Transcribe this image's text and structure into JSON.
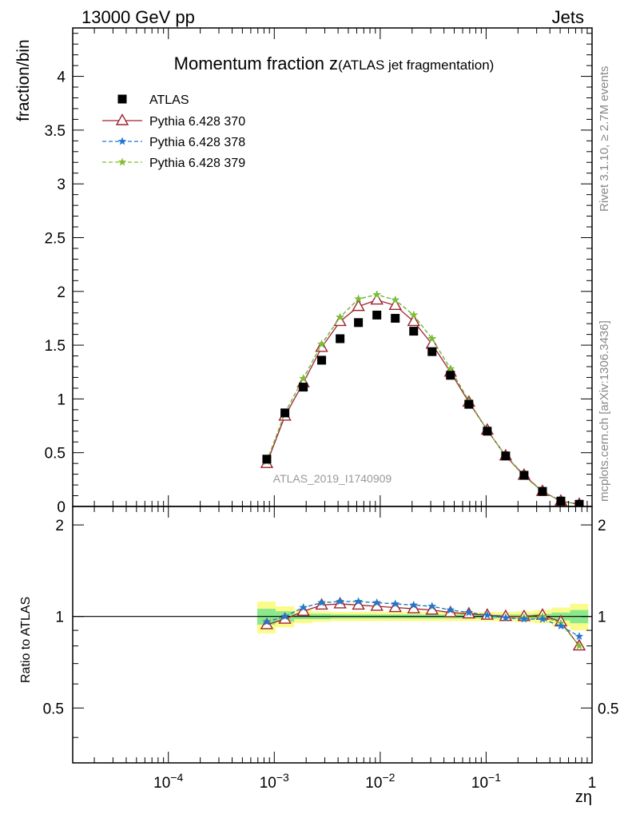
{
  "header": {
    "left_label": "13000 GeV pp",
    "right_label": "Jets"
  },
  "side_labels": {
    "rivet": "Rivet 3.1.10, ≥ 2.7M events",
    "mcplots": "mcplots.cern.ch [arXiv:1306.3436]"
  },
  "chart_data": [
    {
      "type": "scatter",
      "title": "Momentum fraction z",
      "subtitle": "(ATLAS jet fragmentation)",
      "ylabel": "fraction/bin",
      "xlabel": "",
      "watermark": "ATLAS_2019_I1740909",
      "x_scale": "log",
      "xlim": [
        1.25e-05,
        1.0
      ],
      "ylim": [
        0,
        4.45
      ],
      "x_ticks": [
        {
          "value": 0.0001,
          "base": "10",
          "exp": "−4"
        },
        {
          "value": 0.001,
          "base": "10",
          "exp": "−3"
        },
        {
          "value": 0.01,
          "base": "10",
          "exp": "−2"
        },
        {
          "value": 0.1,
          "base": "10",
          "exp": "−1"
        },
        {
          "value": 1,
          "base": "1",
          "exp": ""
        }
      ],
      "y_ticks": [
        {
          "value": 0,
          "label": "0"
        },
        {
          "value": 0.5,
          "label": "0.5"
        },
        {
          "value": 1,
          "label": "1"
        },
        {
          "value": 1.5,
          "label": "1.5"
        },
        {
          "value": 2,
          "label": "2"
        },
        {
          "value": 2.5,
          "label": "2.5"
        },
        {
          "value": 3,
          "label": "3"
        },
        {
          "value": 3.5,
          "label": "3.5"
        },
        {
          "value": 4,
          "label": "4"
        }
      ],
      "legend_position": "top-left",
      "x": [
        0.00085,
        0.00126,
        0.00188,
        0.0028,
        0.00418,
        0.00623,
        0.0093,
        0.01387,
        0.0207,
        0.03087,
        0.04606,
        0.06871,
        0.1025,
        0.1529,
        0.2281,
        0.3404,
        0.5077,
        0.757
      ],
      "series": [
        {
          "name": "ATLAS",
          "color": "#000000",
          "marker": "square",
          "line": "none",
          "values": [
            0.44,
            0.87,
            1.11,
            1.36,
            1.56,
            1.71,
            1.78,
            1.75,
            1.63,
            1.44,
            1.22,
            0.95,
            0.7,
            0.47,
            0.29,
            0.14,
            0.05,
            0.02
          ]
        },
        {
          "name": "Pythia 6.428 370",
          "color": "#a0222e",
          "marker": "open-triangle",
          "line": "solid",
          "values": [
            0.4,
            0.84,
            1.15,
            1.48,
            1.72,
            1.86,
            1.92,
            1.87,
            1.72,
            1.51,
            1.25,
            0.97,
            0.71,
            0.47,
            0.29,
            0.14,
            0.05,
            0.02
          ]
        },
        {
          "name": "Pythia 6.428 378",
          "color": "#1f77d4",
          "marker": "star",
          "line": "dashed",
          "values": [
            0.42,
            0.87,
            1.19,
            1.51,
            1.76,
            1.93,
            1.97,
            1.92,
            1.78,
            1.56,
            1.28,
            0.98,
            0.71,
            0.47,
            0.28,
            0.14,
            0.05,
            0.02
          ]
        },
        {
          "name": "Pythia 6.428 379",
          "color": "#7fbf2a",
          "marker": "star",
          "line": "dashed",
          "values": [
            0.42,
            0.87,
            1.19,
            1.51,
            1.76,
            1.93,
            1.97,
            1.92,
            1.78,
            1.56,
            1.28,
            0.98,
            0.71,
            0.47,
            0.28,
            0.14,
            0.05,
            0.02
          ]
        }
      ]
    },
    {
      "type": "line",
      "ylabel": "Ratio to ATLAS",
      "xlabel": "zη",
      "x_scale": "log",
      "xlim": [
        1.25e-05,
        1.0
      ],
      "ylim": [
        0.33,
        2.3
      ],
      "y_ticks": [
        {
          "value": 0.5,
          "label": "0.5"
        },
        {
          "value": 1,
          "label": "1"
        },
        {
          "value": 2,
          "label": "2"
        }
      ],
      "x": [
        0.00085,
        0.00126,
        0.00188,
        0.0028,
        0.00418,
        0.00623,
        0.0093,
        0.01387,
        0.0207,
        0.03087,
        0.04606,
        0.06871,
        0.1025,
        0.1529,
        0.2281,
        0.3404,
        0.5077,
        0.757
      ],
      "uncertainty_bands": {
        "edges": [
          0.00069,
          0.00103,
          0.00154,
          0.00229,
          0.00342,
          0.0051,
          0.0076,
          0.01135,
          0.01693,
          0.02526,
          0.0377,
          0.0563,
          0.0839,
          0.1252,
          0.1868,
          0.2787,
          0.4159,
          0.6206,
          0.92
        ],
        "green": [
          0.06,
          0.04,
          0.02,
          0.02,
          0.015,
          0.015,
          0.015,
          0.015,
          0.015,
          0.015,
          0.015,
          0.015,
          0.015,
          0.015,
          0.015,
          0.02,
          0.03,
          0.05
        ],
        "yellow": [
          0.12,
          0.08,
          0.05,
          0.04,
          0.035,
          0.035,
          0.035,
          0.035,
          0.035,
          0.035,
          0.035,
          0.035,
          0.035,
          0.035,
          0.04,
          0.05,
          0.07,
          0.1
        ]
      },
      "series": [
        {
          "name": "Pythia 6.428 370",
          "color": "#a0222e",
          "marker": "open-triangle",
          "line": "solid",
          "values": [
            0.94,
            0.98,
            1.04,
            1.09,
            1.1,
            1.09,
            1.08,
            1.07,
            1.06,
            1.05,
            1.03,
            1.02,
            1.01,
            1.0,
            1.0,
            1.01,
            0.96,
            0.8
          ]
        },
        {
          "name": "Pythia 6.428 378",
          "color": "#1f77d4",
          "marker": "star",
          "line": "dashed",
          "values": [
            0.96,
            1.0,
            1.07,
            1.11,
            1.12,
            1.12,
            1.11,
            1.1,
            1.09,
            1.08,
            1.05,
            1.03,
            1.01,
            0.99,
            0.98,
            0.98,
            0.93,
            0.86
          ]
        },
        {
          "name": "Pythia 6.428 379",
          "color": "#7fbf2a",
          "marker": "star",
          "line": "dashed",
          "values": [
            0.96,
            1.0,
            1.07,
            1.11,
            1.12,
            1.12,
            1.11,
            1.1,
            1.09,
            1.08,
            1.05,
            1.03,
            1.01,
            0.99,
            0.99,
            1.0,
            0.95,
            0.8
          ]
        }
      ]
    }
  ]
}
